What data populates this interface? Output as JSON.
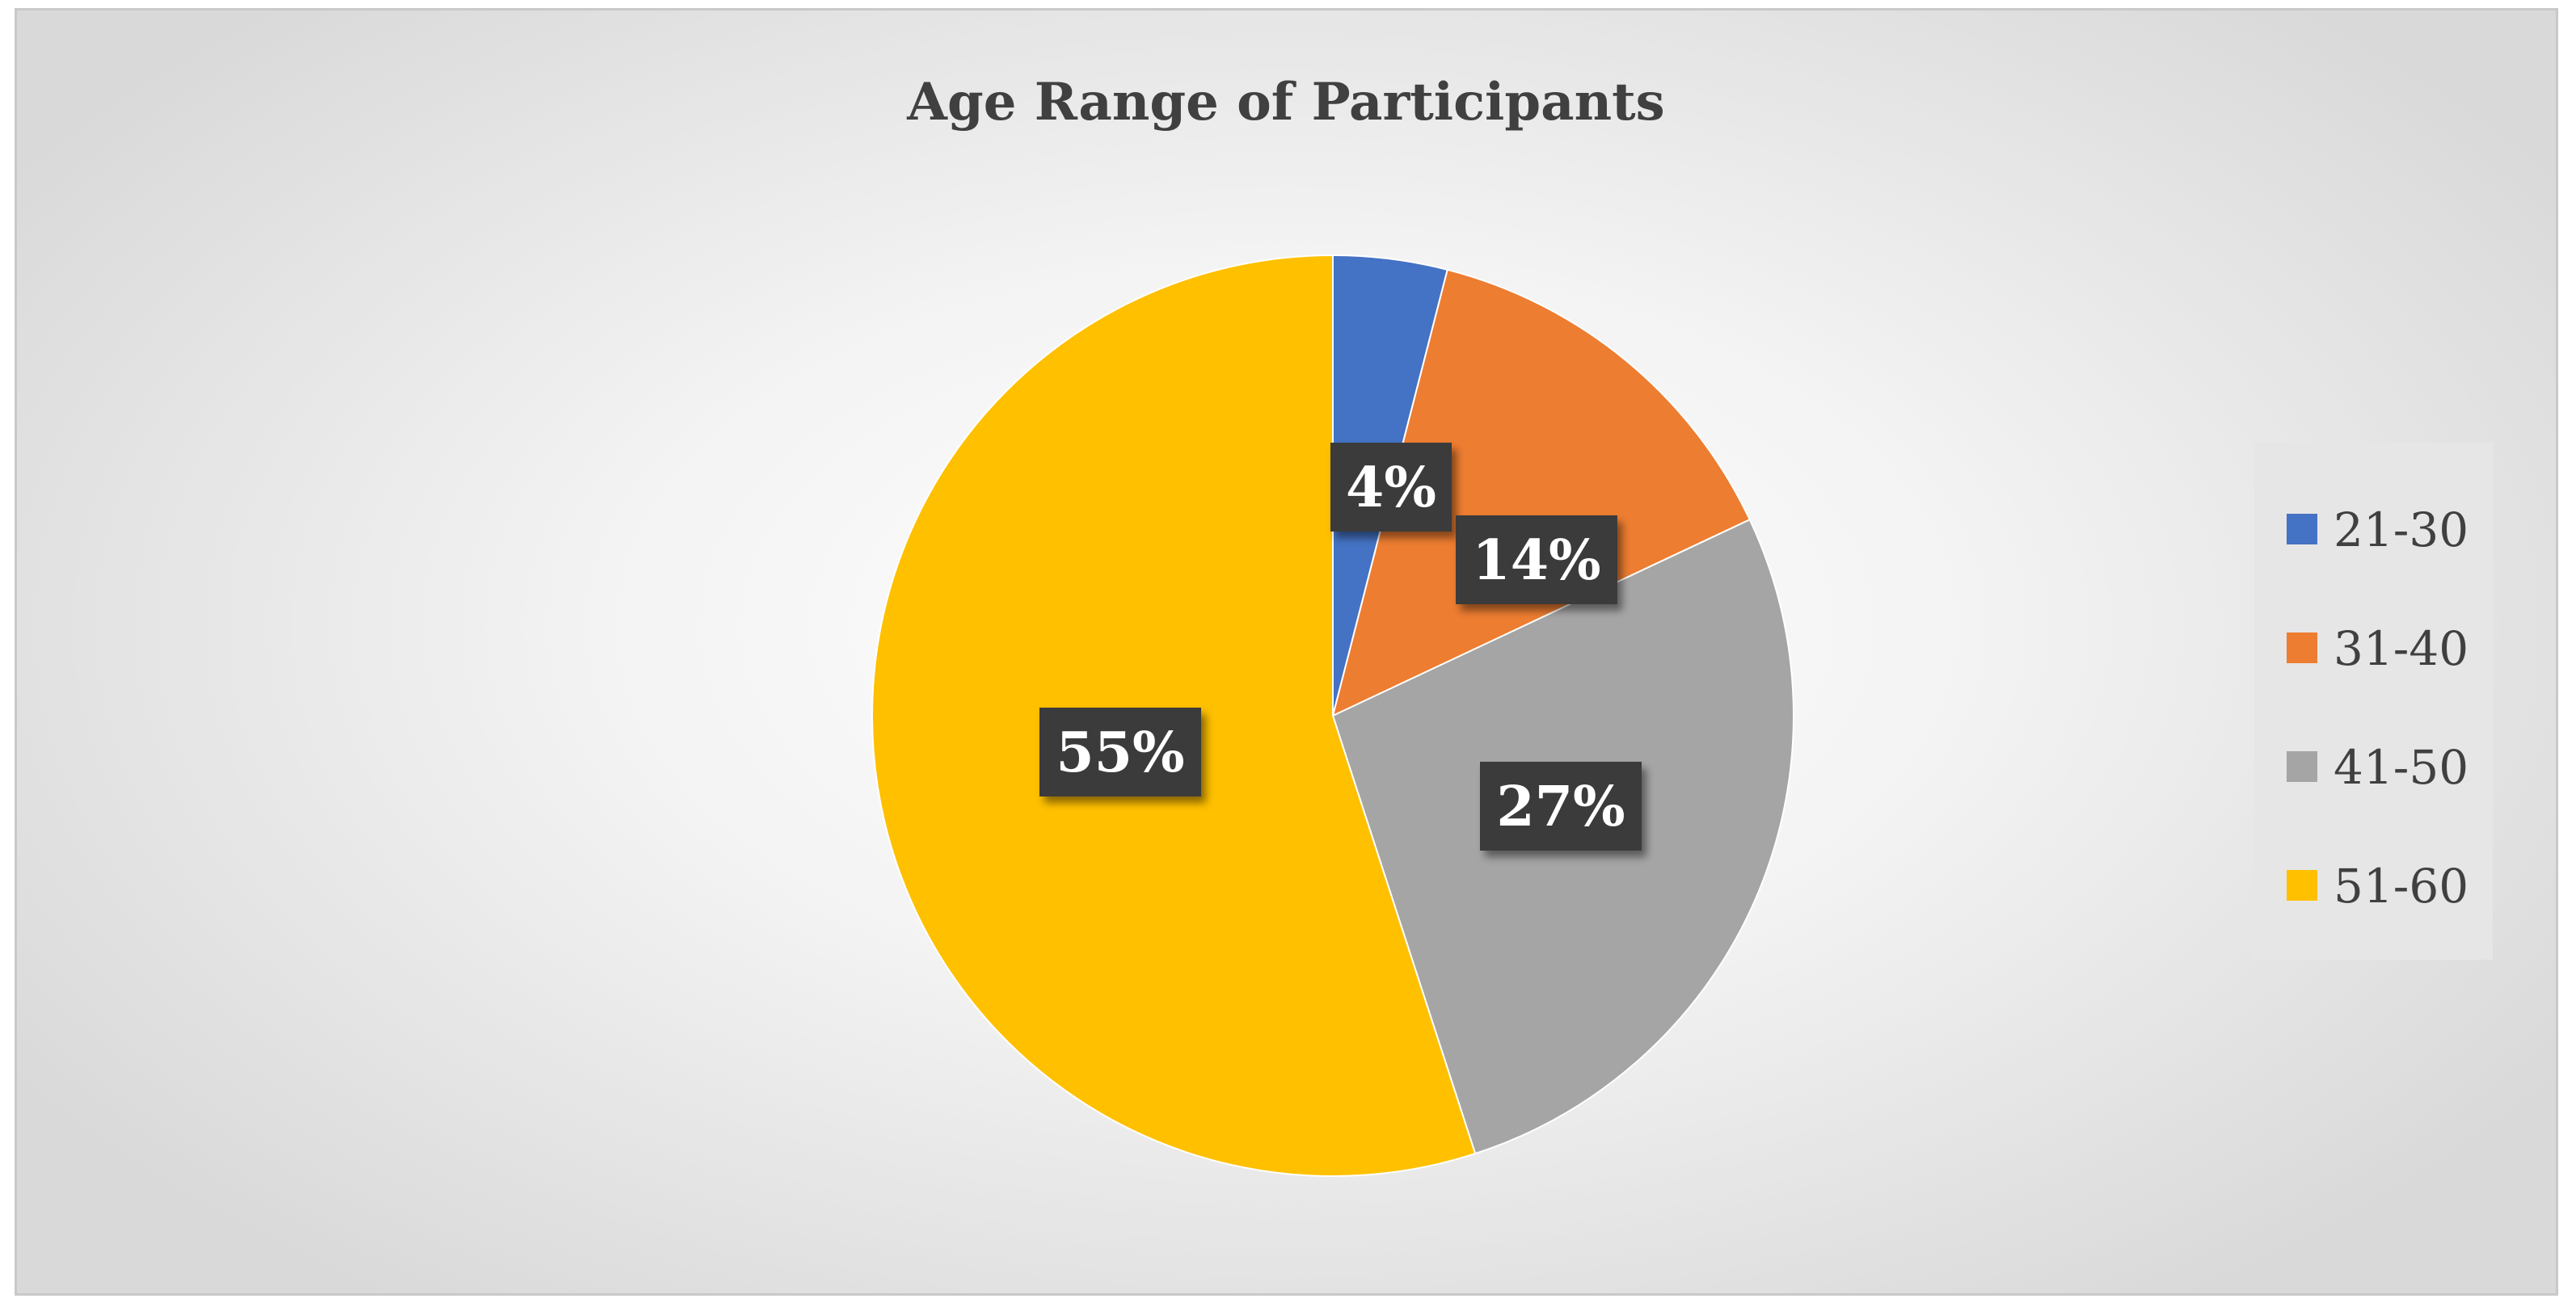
{
  "chart_data": {
    "type": "pie",
    "title": "Age Range of Participants",
    "categories": [
      "21-30",
      "31-40",
      "41-50",
      "51-60"
    ],
    "values": [
      4,
      14,
      27,
      55
    ],
    "labels": [
      "4%",
      "14%",
      "27%",
      "55%"
    ],
    "colors": [
      "#4472C4",
      "#ED7D31",
      "#A5A5A5",
      "#FFC000"
    ],
    "legend_position": "right",
    "start_angle": "12 o'clock",
    "direction": "clockwise"
  }
}
